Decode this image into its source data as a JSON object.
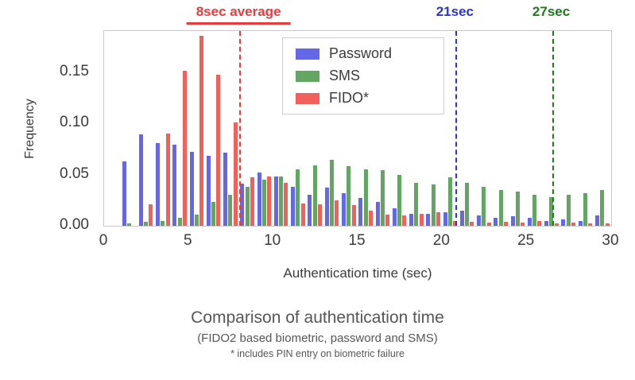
{
  "figure": {
    "title": "Comparison of authentication time",
    "subtitle": "(FIDO2 based biometric, password and SMS)",
    "footnote": "* includes PIN entry on biometric failure"
  },
  "chart_data": {
    "type": "bar",
    "title": "Comparison of authentication time",
    "xlabel": "Authentication time (sec)",
    "ylabel": "Frequency",
    "xlim": [
      0,
      30
    ],
    "ylim": [
      0,
      0.19
    ],
    "grid": false,
    "legend_position": "upper center inside plot",
    "x_ticks": [
      {
        "value": 0,
        "label": "0"
      },
      {
        "value": 5,
        "label": "5"
      },
      {
        "value": 10,
        "label": "10"
      },
      {
        "value": 15,
        "label": "15"
      },
      {
        "value": 20,
        "label": "20"
      },
      {
        "value": 25,
        "label": "25"
      },
      {
        "value": 30,
        "label": "30"
      }
    ],
    "y_ticks": [
      {
        "value": 0.0,
        "label": "0.00"
      },
      {
        "value": 0.05,
        "label": "0.05"
      },
      {
        "value": 0.1,
        "label": "0.10"
      },
      {
        "value": 0.15,
        "label": "0.15"
      }
    ],
    "bins": [
      1,
      2,
      3,
      4,
      5,
      6,
      7,
      8,
      9,
      10,
      11,
      12,
      13,
      14,
      15,
      16,
      17,
      18,
      19,
      20,
      21,
      22,
      23,
      24,
      25,
      26,
      27,
      28,
      29
    ],
    "series": [
      {
        "name": "Password",
        "color": "#6468e8",
        "values": [
          0.063,
          0.089,
          0.081,
          0.079,
          0.072,
          0.068,
          0.071,
          0.041,
          0.052,
          0.048,
          0.038,
          0.03,
          0.037,
          0.032,
          0.027,
          0.023,
          0.017,
          0.012,
          0.012,
          0.013,
          0.015,
          0.01,
          0.008,
          0.009,
          0.008,
          0.005,
          0.006,
          0.005,
          0.01
        ]
      },
      {
        "name": "SMS",
        "color": "#63a663",
        "values": [
          0.002,
          0.004,
          0.005,
          0.008,
          0.011,
          0.023,
          0.03,
          0.038,
          0.045,
          0.048,
          0.055,
          0.059,
          0.064,
          0.058,
          0.055,
          0.054,
          0.05,
          0.042,
          0.04,
          0.047,
          0.042,
          0.038,
          0.035,
          0.033,
          0.03,
          0.028,
          0.03,
          0.032,
          0.035
        ]
      },
      {
        "name": "FIDO*",
        "color": "#f2605c",
        "values": [
          0.0,
          0.021,
          0.09,
          0.151,
          0.185,
          0.147,
          0.101,
          0.047,
          0.048,
          0.042,
          0.022,
          0.021,
          0.025,
          0.02,
          0.015,
          0.011,
          0.01,
          0.012,
          0.013,
          0.005,
          0.004,
          0.003,
          0.004,
          0.003,
          0.005,
          0.002,
          0.003,
          0.002,
          0.002
        ]
      }
    ],
    "annotations": [
      {
        "label": "8sec average",
        "x": 8,
        "color": "#ea3b3b",
        "underline": true
      },
      {
        "label": "21sec",
        "x": 20.8,
        "color": "#2b35c9",
        "underline": false
      },
      {
        "label": "27sec",
        "x": 26.5,
        "color": "#1e7a1e",
        "underline": false
      }
    ]
  }
}
